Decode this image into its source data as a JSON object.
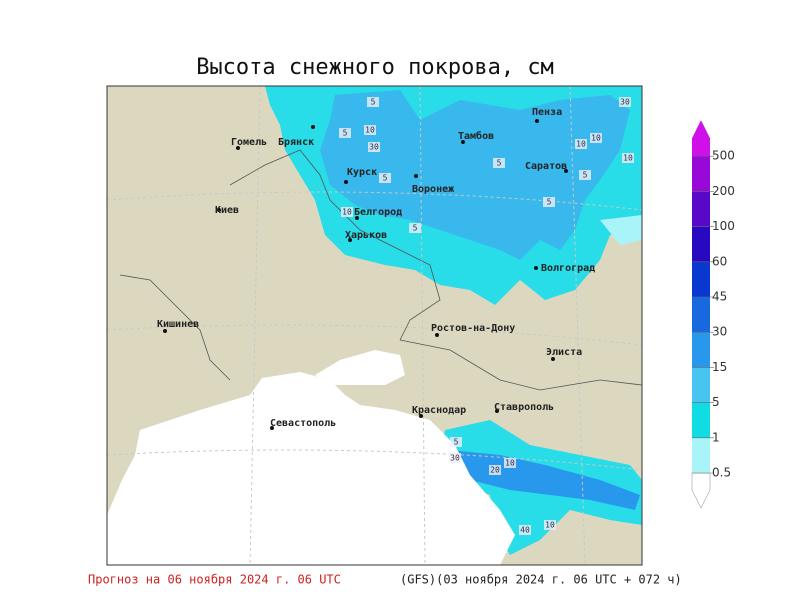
{
  "title": "Высота снежного покрова, см",
  "cities": [
    "Пенза",
    "Гомель",
    "Брянск",
    "Тамбов",
    "Саратов",
    "Курск",
    "Воронеж",
    "Киев",
    "Белгород",
    "Харьков",
    "Волгоград",
    "Кишинев",
    "Ростов-на-Дону",
    "Элиста",
    "Краснодар",
    "Ставрополь",
    "Севастополь"
  ],
  "contour_labels": [
    5,
    10,
    30,
    5,
    5,
    10,
    5,
    5,
    5,
    10,
    5,
    30,
    10,
    10,
    5,
    30,
    20,
    10,
    40,
    10
  ],
  "legend": {
    "levels": [
      0.5,
      1,
      5,
      15,
      30,
      45,
      60,
      100,
      200,
      500
    ],
    "colors": [
      "#ffffff",
      "#a8f4f8",
      "#10dce4",
      "#48c4f0",
      "#2898ec",
      "#1868e0",
      "#0838d0",
      "#2808c0",
      "#5a08c8",
      "#9808d8",
      "#d010e8"
    ]
  },
  "footer": {
    "forecast": "Прогноз на 06 ноября 2024 г. 06 UTC",
    "model": "(GFS)(03 ноября 2024 г. 06 UTC + 072 ч)"
  }
}
